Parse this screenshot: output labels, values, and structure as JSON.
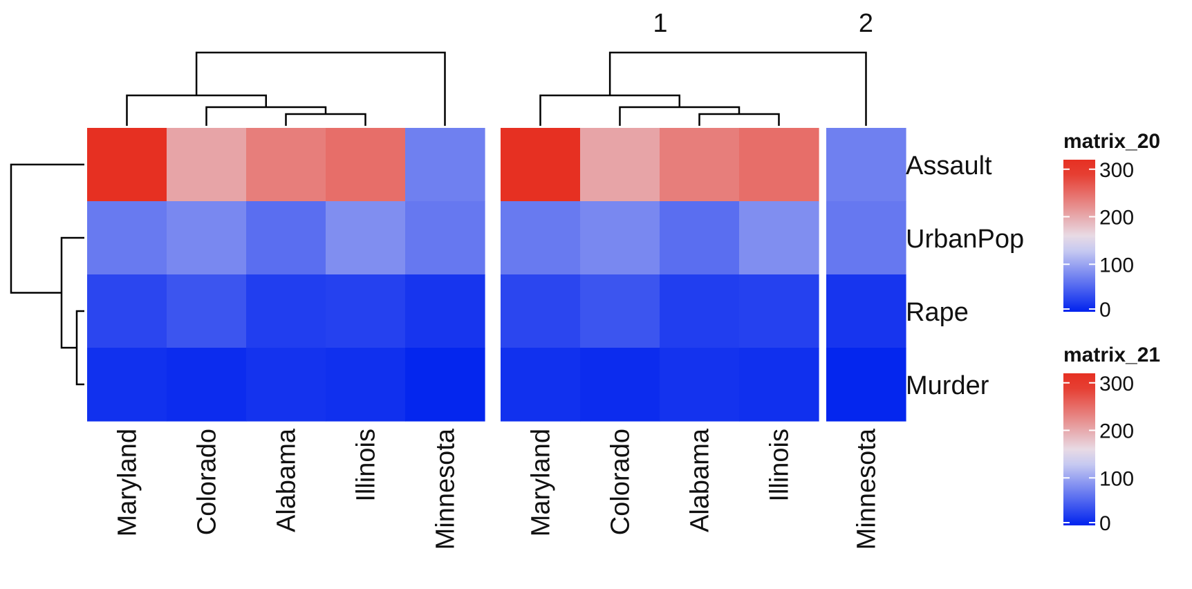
{
  "chart_data": {
    "type": "heatmap",
    "rows": [
      "Assault",
      "UrbanPop",
      "Rape",
      "Murder"
    ],
    "columns": [
      "Maryland",
      "Colorado",
      "Alabama",
      "Illinois",
      "Minnesota"
    ],
    "values": [
      [
        300,
        204,
        236,
        249,
        72
      ],
      [
        67,
        78,
        58,
        83,
        66
      ],
      [
        27.8,
        38.7,
        21.2,
        24.0,
        14.9
      ],
      [
        11.3,
        7.9,
        13.2,
        10.4,
        2.7
      ]
    ],
    "color_scale": {
      "domain": [
        0,
        150,
        300
      ],
      "colors": [
        "#0022ee",
        "#e8e6f2",
        "#e63022"
      ]
    },
    "panels": [
      {
        "name": "matrix_20",
        "columns": [
          "Maryland",
          "Colorado",
          "Alabama",
          "Illinois",
          "Minnesota"
        ],
        "column_splits": [],
        "split_labels": []
      },
      {
        "name": "matrix_21",
        "columns": [
          "Maryland",
          "Colorado",
          "Alabama",
          "Illinois",
          "Minnesota"
        ],
        "column_splits": [
          [
            "Maryland",
            "Colorado",
            "Alabama",
            "Illinois"
          ],
          [
            "Minnesota"
          ]
        ],
        "split_labels": [
          "1",
          "2"
        ]
      }
    ],
    "legends": [
      {
        "title": "matrix_20",
        "ticks": [
          0,
          100,
          200,
          300
        ]
      },
      {
        "title": "matrix_21",
        "ticks": [
          0,
          100,
          200,
          300
        ]
      }
    ]
  }
}
